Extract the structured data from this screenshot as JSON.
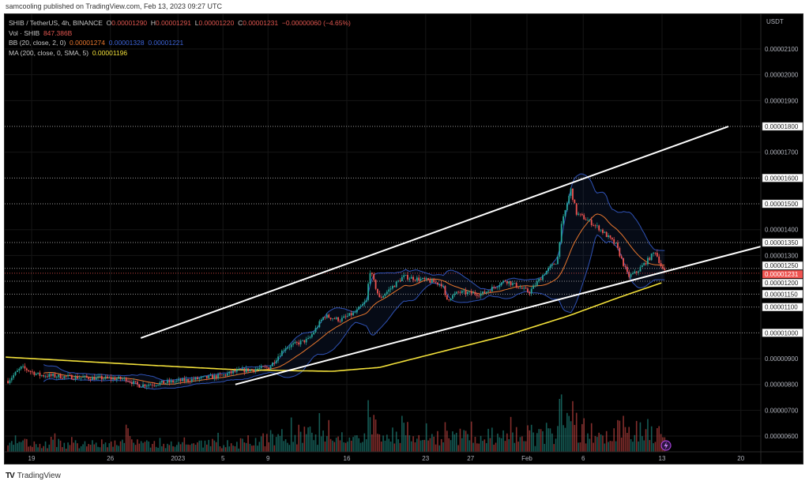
{
  "header": {
    "published": "samcooling published on TradingView.com, Feb 13, 2023 09:27 UTC"
  },
  "legend": {
    "symbol": "SHIB / TetherUS, 4h, BINANCE",
    "o_label": "O",
    "open": "0.00001290",
    "h_label": "H",
    "high": "0.00001291",
    "l_label": "L",
    "low": "0.00001220",
    "c_label": "C",
    "close": "0.00001231",
    "change": "−0.00000060 (−4.65%)",
    "vol_label": "Vol · SHIB",
    "vol_value": "847.386B",
    "bb_label": "BB (20, close, 2, 0)",
    "bb_basis": "0.00001274",
    "bb_upper": "0.00001328",
    "bb_lower": "0.00001221",
    "ma_label": "MA (200, close, 0, SMA, 5)",
    "ma_value": "0.00001196"
  },
  "footer": {
    "brand": "TradingView"
  },
  "colors": {
    "up": "#26a69a",
    "down": "#ef5350",
    "bb_band": "#2f52b5",
    "bb_basis": "#e8772e",
    "ma": "#f2e03a",
    "trend": "#ffffff",
    "price_label": "#ef5350"
  },
  "chart_data": {
    "type": "candlestick",
    "currency": "USDT",
    "ylim": [
      5.5e-06,
      2.2e-06
    ],
    "y_ticks": [
      "0.00002100",
      "0.00002000",
      "0.00001900",
      "0.00001700",
      "0.00001400",
      "0.00001300",
      "0.00000900",
      "0.00000800",
      "0.00000700",
      "0.00000600"
    ],
    "y_tick_values": [
      2.1e-05,
      2e-05,
      1.9e-05,
      1.7e-05,
      1.4e-05,
      1.3e-05,
      9e-06,
      8e-06,
      7e-06,
      6e-06
    ],
    "x_ticks": [
      {
        "label": "19",
        "day": 0
      },
      {
        "label": "26",
        "day": 7
      },
      {
        "label": "2023",
        "day": 13
      },
      {
        "label": "5",
        "day": 17
      },
      {
        "label": "9",
        "day": 21
      },
      {
        "label": "16",
        "day": 28
      },
      {
        "label": "23",
        "day": 35
      },
      {
        "label": "27",
        "day": 39
      },
      {
        "label": "Feb",
        "day": 44
      },
      {
        "label": "6",
        "day": 49
      },
      {
        "label": "13",
        "day": 56
      },
      {
        "label": "20",
        "day": 63
      }
    ],
    "x_unit": "days since Dec 19, 2022",
    "level_lines": [
      {
        "label": "0.00001800",
        "value": 1.8e-05
      },
      {
        "label": "0.00001600",
        "value": 1.6e-05
      },
      {
        "label": "0.00001500",
        "value": 1.5e-05
      },
      {
        "label": "0.00001350",
        "value": 1.35e-05
      },
      {
        "label": "0.00001250",
        "value": 1.25e-05
      },
      {
        "label": "0.00001200",
        "value": 1.2e-05
      },
      {
        "label": "0.00001150",
        "value": 1.15e-05
      },
      {
        "label": "0.00001100",
        "value": 1.1e-05
      },
      {
        "label": "0.00001000",
        "value": 1e-05
      }
    ],
    "current_price": {
      "label": "0.00001231",
      "value": 1.231e-05
    },
    "price_path": [
      [
        -2.1,
        8.14e-06
      ],
      [
        -0.9,
        8.66e-06
      ],
      [
        0.7,
        8.36e-06
      ],
      [
        4.2,
        8.27e-06
      ],
      [
        8.4,
        8.21e-06
      ],
      [
        9.5,
        7.96e-06
      ],
      [
        13.3,
        8.14e-06
      ],
      [
        16.8,
        8.33e-06
      ],
      [
        18.2,
        8.51e-06
      ],
      [
        21.1,
        8.66e-06
      ],
      [
        22.5,
        9.43e-06
      ],
      [
        24.6,
        9.74e-06
      ],
      [
        26.0,
        1.066e-05
      ],
      [
        27.4,
        1.05e-05
      ],
      [
        28.8,
        1.08e-05
      ],
      [
        29.8,
        1.127e-05
      ],
      [
        30.0,
        1.249e-05
      ],
      [
        30.9,
        1.133e-05
      ],
      [
        32.3,
        1.188e-05
      ],
      [
        33.0,
        1.218e-05
      ],
      [
        35.1,
        1.203e-05
      ],
      [
        36.5,
        1.188e-05
      ],
      [
        36.8,
        1.127e-05
      ],
      [
        37.9,
        1.157e-05
      ],
      [
        40.0,
        1.151e-05
      ],
      [
        42.1,
        1.203e-05
      ],
      [
        44.2,
        1.157e-05
      ],
      [
        45.6,
        1.234e-05
      ],
      [
        46.7,
        1.28e-05
      ],
      [
        47.0,
        1.402e-05
      ],
      [
        47.6,
        1.509e-05
      ],
      [
        47.9,
        1.555e-05
      ],
      [
        48.4,
        1.463e-05
      ],
      [
        49.5,
        1.433e-05
      ],
      [
        50.5,
        1.402e-05
      ],
      [
        51.9,
        1.341e-05
      ],
      [
        53.0,
        1.218e-05
      ],
      [
        53.7,
        1.234e-05
      ],
      [
        54.7,
        1.28e-05
      ],
      [
        55.4,
        1.316e-05
      ],
      [
        56.0,
        1.249e-05
      ],
      [
        56.3,
        1.231e-05
      ]
    ],
    "ma200_path": [
      [
        -2.3,
        9.06e-06
      ],
      [
        11.2,
        8.73e-06
      ],
      [
        18.2,
        8.57e-06
      ],
      [
        26.7,
        8.51e-06
      ],
      [
        30.9,
        8.66e-06
      ],
      [
        36.5,
        9.28e-06
      ],
      [
        42.1,
        9.89e-06
      ],
      [
        47.7,
        1.066e-05
      ],
      [
        51.9,
        1.133e-05
      ],
      [
        56.1,
        1.196e-05
      ]
    ],
    "bb_period": 20,
    "bb_mult": 2,
    "trend_lines": [
      {
        "name": "upper-channel",
        "from": [
          9.7,
          9.8e-06
        ],
        "to": [
          61.9,
          1.8e-05
        ]
      },
      {
        "name": "lower-channel",
        "from": [
          18.1,
          8e-06
        ],
        "to": [
          64.8,
          1.335e-05
        ]
      }
    ]
  }
}
